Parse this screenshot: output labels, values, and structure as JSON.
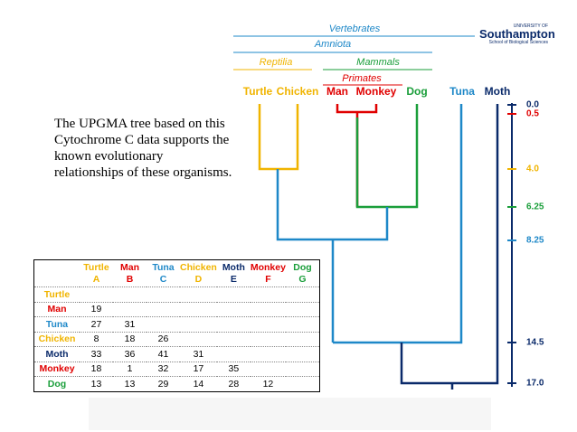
{
  "header": {
    "logo_small": "UNIVERSITY OF",
    "logo_name": "Southampton",
    "logo_sub": "School of Biological Sciences"
  },
  "groups": {
    "vertebrates": "Vertebrates",
    "amniota": "Amniota",
    "reptilia": "Reptilia",
    "mammals": "Mammals",
    "primates": "Primates"
  },
  "taxa": [
    "Turtle",
    "Chicken",
    "Man",
    "Monkey",
    "Dog",
    "Tuna",
    "Moth"
  ],
  "scale": [
    "0.0",
    "0.5",
    "4.0",
    "6.25",
    "8.25",
    "14.5",
    "17.0"
  ],
  "text": "The UPGMA tree based on this Cytochrome C data supports the known evolutionary relationships of these organisms.",
  "table": {
    "columns": [
      {
        "name": "Turtle",
        "letter": "A"
      },
      {
        "name": "Man",
        "letter": "B"
      },
      {
        "name": "Tuna",
        "letter": "C"
      },
      {
        "name": "Chicken",
        "letter": "D"
      },
      {
        "name": "Moth",
        "letter": "E"
      },
      {
        "name": "Monkey",
        "letter": "F"
      },
      {
        "name": "Dog",
        "letter": "G"
      }
    ],
    "rows": [
      {
        "label": "Turtle",
        "values": []
      },
      {
        "label": "Man",
        "values": [
          19
        ]
      },
      {
        "label": "Tuna",
        "values": [
          27,
          31
        ]
      },
      {
        "label": "Chicken",
        "values": [
          8,
          18,
          26
        ]
      },
      {
        "label": "Moth",
        "values": [
          33,
          36,
          41,
          31
        ]
      },
      {
        "label": "Monkey",
        "values": [
          18,
          1,
          32,
          17,
          35
        ]
      },
      {
        "label": "Dog",
        "values": [
          13,
          13,
          29,
          14,
          28,
          12
        ]
      }
    ]
  }
}
